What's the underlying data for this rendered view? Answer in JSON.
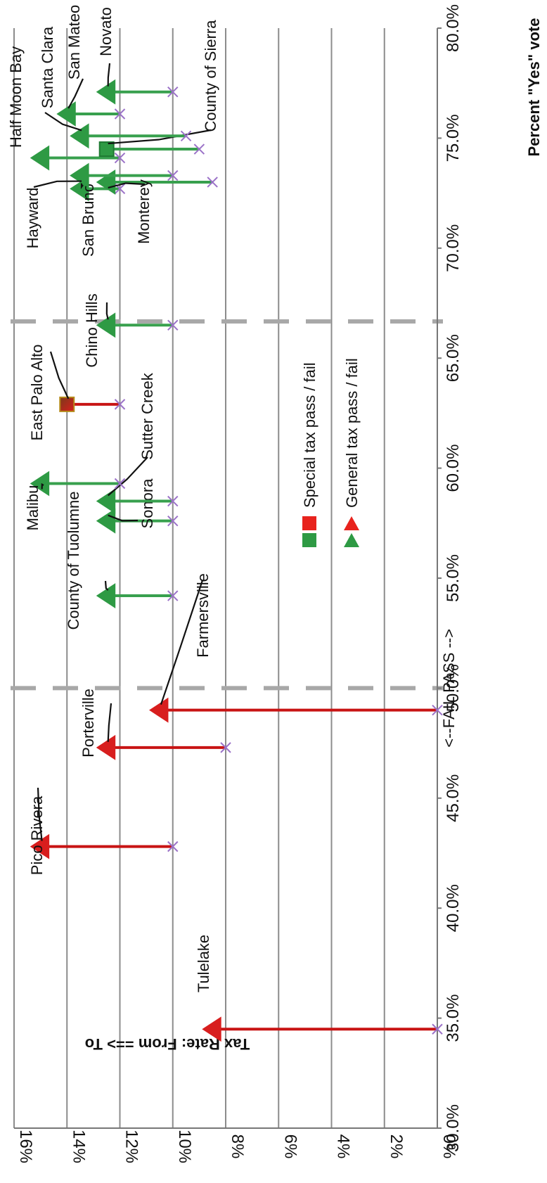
{
  "chart_data": {
    "type": "scatter",
    "title": "",
    "xlabel": "Percent \"Yes\" vote",
    "ylabel": "Tax Rate: From ==> To",
    "xlim": [
      30,
      80
    ],
    "ylim": [
      0,
      16
    ],
    "x_ticks": [
      "30.0%",
      "35.0%",
      "40.0%",
      "45.0%",
      "50.0%",
      "55.0%",
      "60.0%",
      "65.0%",
      "70.0%",
      "75.0%",
      "80.0%"
    ],
    "y_ticks": [
      "0%",
      "2%",
      "4%",
      "6%",
      "8%",
      "10%",
      "12%",
      "14%",
      "16%"
    ],
    "grid": "horizontal",
    "orientation": "rotated 90 degrees clockwise",
    "thresholds": [
      {
        "x": 50.0,
        "label": "<--FAIL   PASS -->"
      },
      {
        "x": 66.67,
        "label": ""
      }
    ],
    "legend": {
      "placement": "center",
      "entries": [
        {
          "label": "Special tax pass / fail",
          "marker": "square",
          "colors": [
            "#2e9a44",
            "#e8231d"
          ]
        },
        {
          "label": "General tax pass / fail",
          "marker": "triangle",
          "colors": [
            "#2e9a44",
            "#e8231d"
          ]
        }
      ]
    },
    "colors": {
      "pass": "#2e9a44",
      "fail": "#d81e1e",
      "pass_line": "#38a04e",
      "fail_line": "#c81414",
      "from_marker": "#9b72c8",
      "grid": "#8c8c8c",
      "threshold": "#a8a8a8"
    },
    "series": [
      {
        "name": "Tulelake",
        "x": 34.5,
        "from": 0,
        "to": 8.5,
        "kind": "general",
        "result": "fail"
      },
      {
        "name": "Pico Rivera",
        "x": 42.8,
        "from": 10,
        "to": 15,
        "kind": "general",
        "result": "fail"
      },
      {
        "name": "Porterville",
        "x": 47.3,
        "from": 8,
        "to": 12.5,
        "kind": "general",
        "result": "fail"
      },
      {
        "name": "Farmersville",
        "x": 49.0,
        "from": 0,
        "to": 10.5,
        "kind": "general",
        "result": "fail"
      },
      {
        "name": "County of Tuolumne",
        "x": 54.2,
        "from": 10,
        "to": 12.5,
        "kind": "general",
        "result": "pass"
      },
      {
        "name": "Sonora",
        "x": 57.6,
        "from": 10,
        "to": 12.5,
        "kind": "general",
        "result": "pass"
      },
      {
        "name": "Sutter Creek",
        "x": 58.5,
        "from": 10,
        "to": 12.5,
        "kind": "general",
        "result": "pass"
      },
      {
        "name": "Malibu",
        "x": 59.3,
        "from": 12,
        "to": 15,
        "kind": "general",
        "result": "pass"
      },
      {
        "name": "East Palo Alto",
        "x": 62.9,
        "from": 12,
        "to": 14,
        "kind": "special",
        "result": "fail"
      },
      {
        "name": "Chino Hills",
        "x": 66.5,
        "from": 10,
        "to": 12.5,
        "kind": "general",
        "result": "pass"
      },
      {
        "name": "San Bruno",
        "x": 72.7,
        "from": 12,
        "to": 13.5,
        "kind": "general",
        "result": "pass"
      },
      {
        "name": "Monterey",
        "x": 73.0,
        "from": 8.5,
        "to": 12.5,
        "kind": "general",
        "result": "pass"
      },
      {
        "name": "Hayward",
        "x": 73.3,
        "from": 10,
        "to": 13.5,
        "kind": "general",
        "result": "pass"
      },
      {
        "name": "Half Moon Bay",
        "x": 74.1,
        "from": 12,
        "to": 15,
        "kind": "general",
        "result": "pass"
      },
      {
        "name": "County of Sierra",
        "x": 74.5,
        "from": 9,
        "to": 12.5,
        "kind": "special",
        "result": "pass"
      },
      {
        "name": "Santa Clara",
        "x": 75.1,
        "from": 9.5,
        "to": 13.5,
        "kind": "general",
        "result": "pass"
      },
      {
        "name": "San Mateo",
        "x": 76.1,
        "from": 12,
        "to": 14,
        "kind": "general",
        "result": "pass"
      },
      {
        "name": "Novato",
        "x": 77.1,
        "from": 10,
        "to": 12.5,
        "kind": "general",
        "result": "pass"
      }
    ]
  }
}
